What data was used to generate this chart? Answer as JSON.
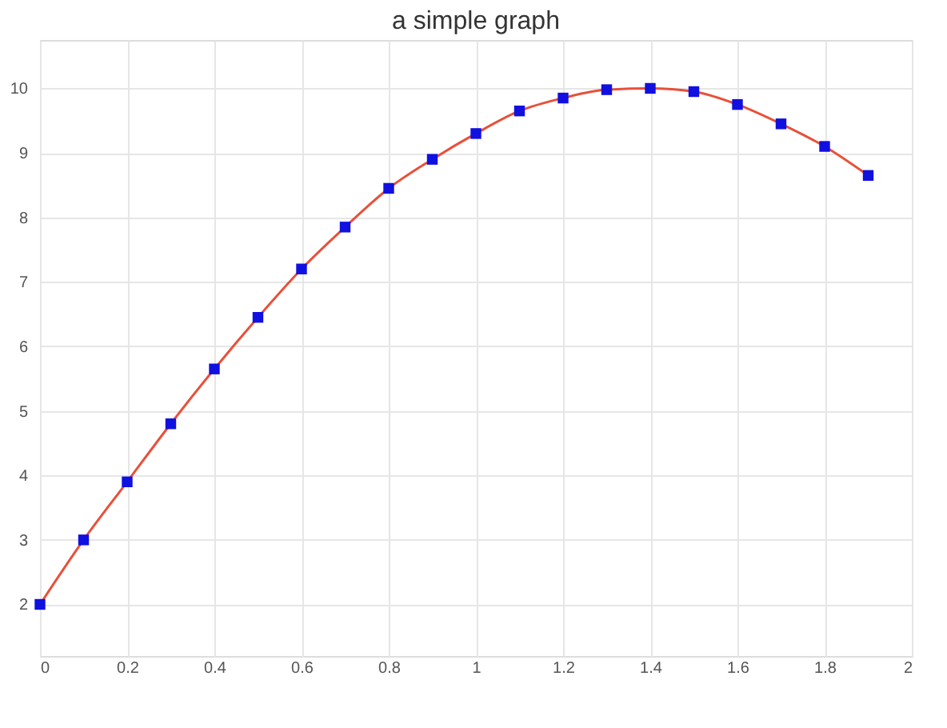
{
  "chart_data": {
    "type": "line",
    "title": "a simple graph",
    "x": [
      0,
      0.1,
      0.2,
      0.3,
      0.4,
      0.5,
      0.6,
      0.7,
      0.8,
      0.9,
      1.0,
      1.1,
      1.2,
      1.3,
      1.4,
      1.5,
      1.6,
      1.7,
      1.8,
      1.9
    ],
    "series": [
      {
        "type": "line",
        "color": "#e8503a",
        "marker": "none",
        "line_style": "solid",
        "values": [
          2,
          3,
          3.9,
          4.8,
          5.65,
          6.45,
          7.2,
          7.85,
          8.45,
          8.9,
          9.3,
          9.65,
          9.85,
          9.98,
          10.0,
          9.95,
          9.75,
          9.45,
          9.1,
          8.65
        ]
      },
      {
        "type": "scatter",
        "color": "#1010e0",
        "marker": "square",
        "values": [
          2,
          3,
          3.9,
          4.8,
          5.65,
          6.45,
          7.2,
          7.85,
          8.45,
          8.9,
          9.3,
          9.65,
          9.85,
          9.98,
          10.0,
          9.95,
          9.75,
          9.45,
          9.1,
          8.65
        ]
      }
    ],
    "xlim": [
      0,
      2
    ],
    "xticks": [
      0,
      0.2,
      0.4,
      0.6,
      0.8,
      1,
      1.2,
      1.4,
      1.6,
      1.8,
      2
    ],
    "ylim": [
      1.2,
      10.75
    ],
    "yticks": [
      2,
      3,
      4,
      5,
      6,
      7,
      8,
      9,
      10
    ],
    "grid": true
  }
}
